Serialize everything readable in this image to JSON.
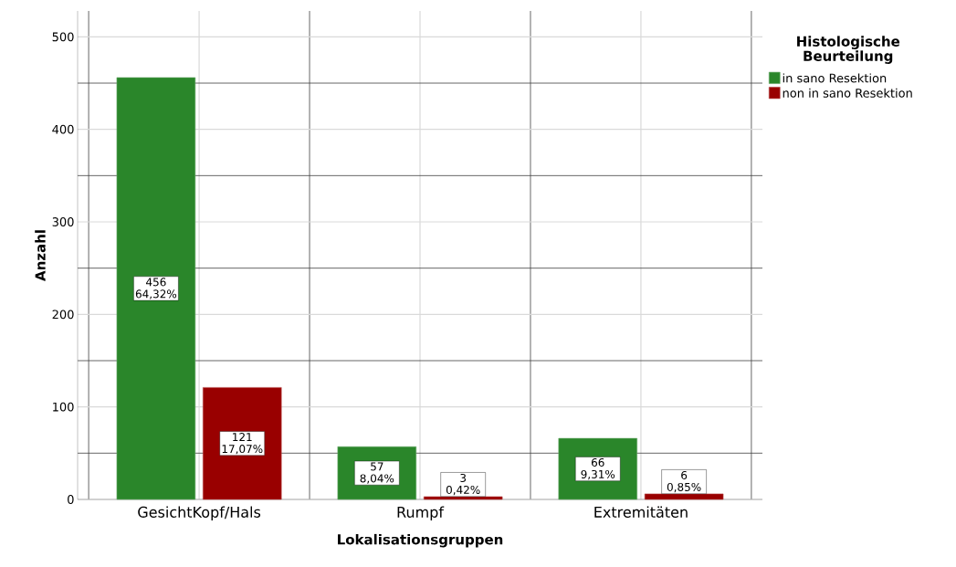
{
  "chart_data": {
    "type": "bar",
    "xlabel": "Lokalisationsgruppen",
    "ylabel": "Anzahl",
    "legend_title": "Histologische Beurteilung",
    "categories": [
      "GesichtKopf/Hals",
      "Rumpf",
      "Extremitäten"
    ],
    "series": [
      {
        "name": "in sano Resektion",
        "color": "#2a862a",
        "values": [
          456,
          57,
          66
        ],
        "value_labels": [
          "456 64,32%",
          "57 8,04%",
          "66 9,31%"
        ]
      },
      {
        "name": "non in sano Resektion",
        "color": "#990000",
        "values": [
          121,
          3,
          6
        ],
        "value_labels": [
          "121 17,07%",
          "3 0,42%",
          "6 0,85%"
        ]
      }
    ],
    "ylim": [
      0,
      528
    ],
    "yticks": [
      0,
      100,
      200,
      300,
      400,
      500
    ],
    "grid": true,
    "legend": "top right"
  }
}
